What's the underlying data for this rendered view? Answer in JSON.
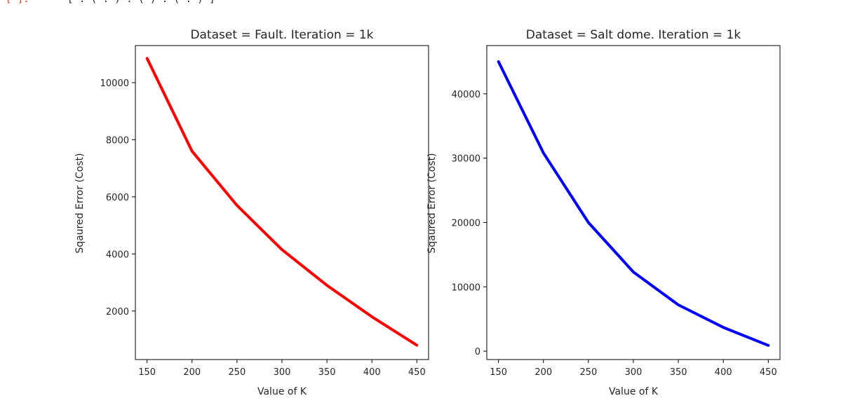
{
  "cell_prompt": "[ ]:",
  "cell_code": "[ : ( : ) : ( ) : ( : ) ]",
  "chart_data": [
    {
      "type": "line",
      "title": "Dataset = Fault. Iteration = 1k",
      "xlabel": "Value of K",
      "ylabel": "Sqaured Error (Cost)",
      "x": [
        150,
        200,
        250,
        300,
        350,
        400,
        450
      ],
      "series": [
        {
          "values": [
            10850,
            7600,
            5700,
            4150,
            2900,
            1800,
            800
          ],
          "color": "#ff0000"
        }
      ],
      "xlim": [
        137,
        463
      ],
      "ylim": [
        300,
        11300
      ],
      "xticks": [
        150,
        200,
        250,
        300,
        350,
        400,
        450
      ],
      "yticks": [
        2000,
        4000,
        6000,
        8000,
        10000
      ],
      "grid": false
    },
    {
      "type": "line",
      "title": "Dataset = Salt dome. Iteration = 1k",
      "xlabel": "Value of K",
      "ylabel": "Sqaured Error (Cost)",
      "x": [
        150,
        200,
        250,
        300,
        350,
        400,
        450
      ],
      "series": [
        {
          "values": [
            45000,
            30800,
            20000,
            12300,
            7200,
            3700,
            900
          ],
          "color": "#0000ff"
        }
      ],
      "xlim": [
        137,
        463
      ],
      "ylim": [
        -1300,
        47500
      ],
      "xticks": [
        150,
        200,
        250,
        300,
        350,
        400,
        450
      ],
      "yticks": [
        0,
        10000,
        20000,
        30000,
        40000
      ],
      "grid": false
    }
  ]
}
